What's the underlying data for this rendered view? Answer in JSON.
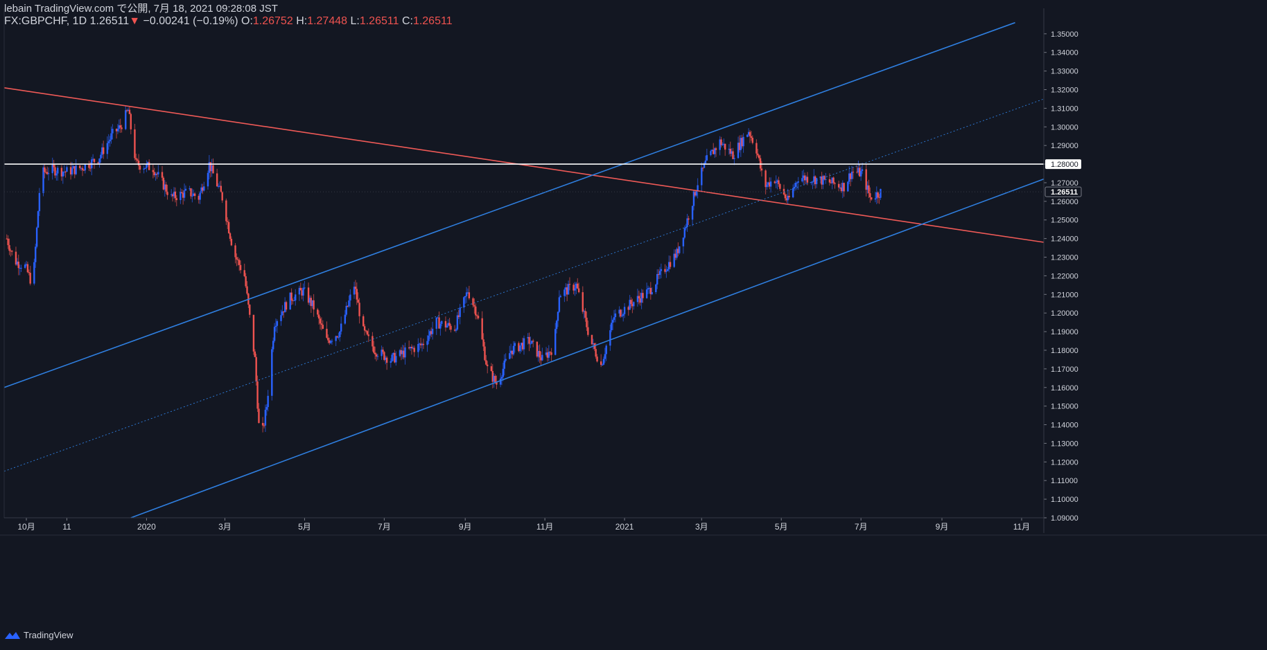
{
  "header": {
    "publisher": "lebain TradingView.com で公開, 7月 18, 2021 09:28:08 JST",
    "symbol": "FX:GBPCHF, 1D",
    "last": "1.26511",
    "arrow": "▼",
    "change": "−0.00241 (−0.19%)",
    "o_label": "O:",
    "o_value": "1.26752",
    "h_label": "H:",
    "h_value": "1.27448",
    "l_label": "L:",
    "l_value": "1.26511",
    "c_label": "C:",
    "c_value": "1.26511"
  },
  "footer": {
    "brand": "TradingView",
    "logo_icon": "tradingview-logo-icon"
  },
  "colors": {
    "bg": "#131722",
    "up": "#2962ff",
    "down": "#ef5350",
    "channel": "#2f7fe0",
    "resistance": "#f05a57",
    "hline": "#ffffff"
  },
  "chart_data": {
    "type": "candlestick",
    "symbol": "FX:GBPCHF",
    "interval": "1D",
    "ylim": [
      1.09,
      1.357
    ],
    "y_ticks": [
      "1.35000",
      "1.34000",
      "1.33000",
      "1.32000",
      "1.31000",
      "1.30000",
      "1.29000",
      "1.28000",
      "1.27000",
      "1.26000",
      "1.25000",
      "1.24000",
      "1.23000",
      "1.22000",
      "1.21000",
      "1.20000",
      "1.19000",
      "1.18000",
      "1.17000",
      "1.16000",
      "1.15000",
      "1.14000",
      "1.13000",
      "1.12000",
      "1.11000",
      "1.10000",
      "1.09000"
    ],
    "x_ticks": [
      {
        "date": "2019-10-01",
        "label": "10月"
      },
      {
        "date": "2019-11-01",
        "label": "11"
      },
      {
        "date": "2020-01-01",
        "label": "2020"
      },
      {
        "date": "2020-03-01",
        "label": "3月"
      },
      {
        "date": "2020-05-01",
        "label": "5月"
      },
      {
        "date": "2020-07-01",
        "label": "7月"
      },
      {
        "date": "2020-09-01",
        "label": "9月"
      },
      {
        "date": "2020-11-01",
        "label": "11月"
      },
      {
        "date": "2021-01-01",
        "label": "2021"
      },
      {
        "date": "2021-03-01",
        "label": "3月"
      },
      {
        "date": "2021-05-01",
        "label": "5月"
      },
      {
        "date": "2021-07-01",
        "label": "7月"
      },
      {
        "date": "2021-09-01",
        "label": "9月"
      },
      {
        "date": "2021-11-01",
        "label": "11月"
      }
    ],
    "xlim": [
      "2019-09-14",
      "2021-11-18"
    ],
    "price_path": [
      [
        "2019-09-16",
        1.24
      ],
      [
        "2019-09-22",
        1.228
      ],
      [
        "2019-09-30",
        1.225
      ],
      [
        "2019-10-06",
        1.215
      ],
      [
        "2019-10-12",
        1.275
      ],
      [
        "2019-10-20",
        1.277
      ],
      [
        "2019-11-01",
        1.276
      ],
      [
        "2019-11-12",
        1.278
      ],
      [
        "2019-11-25",
        1.283
      ],
      [
        "2019-12-06",
        1.296
      ],
      [
        "2019-12-12",
        1.3
      ],
      [
        "2019-12-18",
        1.309
      ],
      [
        "2019-12-24",
        1.28
      ],
      [
        "2020-01-06",
        1.278
      ],
      [
        "2020-01-20",
        1.262
      ],
      [
        "2020-02-02",
        1.265
      ],
      [
        "2020-02-10",
        1.262
      ],
      [
        "2020-02-18",
        1.28
      ],
      [
        "2020-02-28",
        1.262
      ],
      [
        "2020-03-08",
        1.232
      ],
      [
        "2020-03-16",
        1.22
      ],
      [
        "2020-03-24",
        1.175
      ],
      [
        "2020-03-28",
        1.128
      ],
      [
        "2020-04-02",
        1.15
      ],
      [
        "2020-04-08",
        1.195
      ],
      [
        "2020-04-20",
        1.208
      ],
      [
        "2020-04-30",
        1.212
      ],
      [
        "2020-05-08",
        1.203
      ],
      [
        "2020-05-18",
        1.185
      ],
      [
        "2020-05-28",
        1.19
      ],
      [
        "2020-06-08",
        1.215
      ],
      [
        "2020-06-15",
        1.19
      ],
      [
        "2020-06-24",
        1.18
      ],
      [
        "2020-07-06",
        1.175
      ],
      [
        "2020-07-20",
        1.18
      ],
      [
        "2020-07-30",
        1.183
      ],
      [
        "2020-08-10",
        1.195
      ],
      [
        "2020-08-24",
        1.192
      ],
      [
        "2020-09-03",
        1.212
      ],
      [
        "2020-09-10",
        1.2
      ],
      [
        "2020-09-18",
        1.17
      ],
      [
        "2020-09-25",
        1.162
      ],
      [
        "2020-10-06",
        1.18
      ],
      [
        "2020-10-20",
        1.185
      ],
      [
        "2020-10-30",
        1.175
      ],
      [
        "2020-11-08",
        1.182
      ],
      [
        "2020-11-12",
        1.21
      ],
      [
        "2020-11-25",
        1.215
      ],
      [
        "2020-12-06",
        1.185
      ],
      [
        "2020-12-14",
        1.172
      ],
      [
        "2020-12-24",
        1.198
      ],
      [
        "2021-01-06",
        1.205
      ],
      [
        "2021-01-20",
        1.212
      ],
      [
        "2021-02-02",
        1.225
      ],
      [
        "2021-02-10",
        1.232
      ],
      [
        "2021-02-18",
        1.25
      ],
      [
        "2021-02-26",
        1.27
      ],
      [
        "2021-03-05",
        1.282
      ],
      [
        "2021-03-15",
        1.292
      ],
      [
        "2021-03-25",
        1.285
      ],
      [
        "2021-04-06",
        1.298
      ],
      [
        "2021-04-12",
        1.288
      ],
      [
        "2021-04-18",
        1.268
      ],
      [
        "2021-04-26",
        1.272
      ],
      [
        "2021-05-06",
        1.26
      ],
      [
        "2021-05-14",
        1.273
      ],
      [
        "2021-05-28",
        1.272
      ],
      [
        "2021-06-08",
        1.27
      ],
      [
        "2021-06-18",
        1.268
      ],
      [
        "2021-06-24",
        1.276
      ],
      [
        "2021-07-02",
        1.275
      ],
      [
        "2021-07-08",
        1.262
      ],
      [
        "2021-07-16",
        1.265
      ]
    ],
    "drawings": {
      "horizontal_line": {
        "price": 1.28,
        "label": "1.28000"
      },
      "channel_upper": [
        [
          "2019-09-14",
          1.16
        ],
        [
          "2021-10-27",
          1.356
        ]
      ],
      "channel_middle": [
        [
          "2019-09-14",
          1.115
        ],
        [
          "2021-11-18",
          1.315
        ]
      ],
      "channel_lower": [
        [
          "2019-12-20",
          1.09
        ],
        [
          "2021-11-18",
          1.272
        ]
      ],
      "resistance": [
        [
          "2019-09-14",
          1.321
        ],
        [
          "2021-11-18",
          1.238
        ]
      ]
    },
    "last_price": {
      "price": 1.26511,
      "label": "1.26511"
    }
  }
}
